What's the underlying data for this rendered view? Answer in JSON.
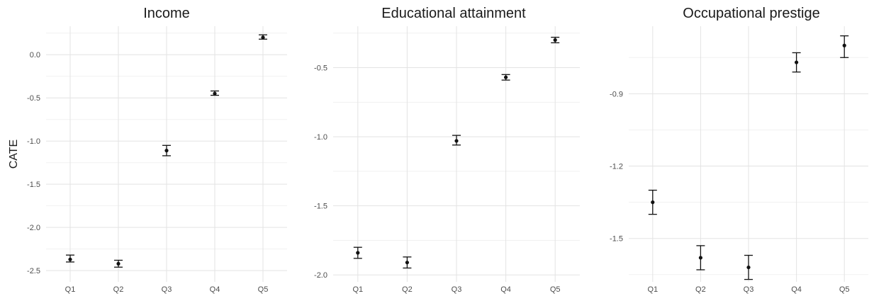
{
  "chart_data": [
    {
      "type": "scatter",
      "title": "Income",
      "xlabel": "",
      "ylabel": "CATE",
      "categories": [
        "Q1",
        "Q2",
        "Q3",
        "Q4",
        "Q5"
      ],
      "values": [
        -2.37,
        -2.42,
        -1.11,
        -0.45,
        0.2
      ],
      "ci_lower": [
        -2.4,
        -2.46,
        -1.17,
        -0.47,
        0.18
      ],
      "ci_upper": [
        -2.32,
        -2.38,
        -1.05,
        -0.42,
        0.23
      ],
      "yticks": [
        0.0,
        -0.5,
        -1.0,
        -1.5,
        -2.0,
        -2.5
      ],
      "ytick_labels": [
        "0.0",
        "-0.5",
        "-1.0",
        "-1.5",
        "-2.0",
        "-2.5"
      ],
      "ylim": [
        -2.63,
        0.33
      ],
      "grid": true
    },
    {
      "type": "scatter",
      "title": "Educational attainment",
      "xlabel": "",
      "ylabel": "",
      "categories": [
        "Q1",
        "Q2",
        "Q3",
        "Q4",
        "Q5"
      ],
      "values": [
        -1.84,
        -1.91,
        -1.03,
        -0.57,
        -0.3
      ],
      "ci_lower": [
        -1.88,
        -1.95,
        -1.06,
        -0.59,
        -0.32
      ],
      "ci_upper": [
        -1.8,
        -1.87,
        -0.99,
        -0.55,
        -0.28
      ],
      "yticks": [
        -0.5,
        -1.0,
        -1.5,
        -2.0
      ],
      "ytick_labels": [
        "-0.5",
        "-1.0",
        "-1.5",
        "-2.0"
      ],
      "ylim": [
        -2.05,
        -0.2
      ],
      "grid": true
    },
    {
      "type": "scatter",
      "title": "Occupational prestige",
      "xlabel": "",
      "ylabel": "",
      "categories": [
        "Q1",
        "Q2",
        "Q3",
        "Q4",
        "Q5"
      ],
      "values": [
        -1.35,
        -1.58,
        -1.62,
        -0.77,
        -0.7
      ],
      "ci_lower": [
        -1.4,
        -1.63,
        -1.67,
        -0.81,
        -0.75
      ],
      "ci_upper": [
        -1.3,
        -1.53,
        -1.57,
        -0.73,
        -0.66
      ],
      "yticks": [
        -0.9,
        -1.2,
        -1.5
      ],
      "ytick_labels": [
        "-0.9",
        "-1.2",
        "-1.5"
      ],
      "ylim": [
        -1.68,
        -0.62
      ],
      "grid": true
    }
  ]
}
